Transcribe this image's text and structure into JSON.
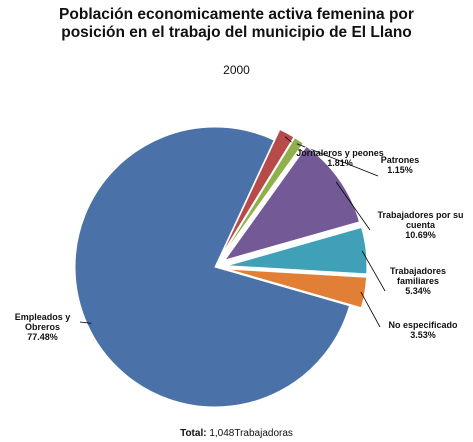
{
  "chart_data": {
    "type": "pie",
    "title": "Población economicamente activa femenina por posición en el trabajo del municipio de El Llano",
    "subtitle": "2000",
    "categories": [
      "Jornaleros y peones",
      "Patrones",
      "Trabajadores por su cuenta",
      "Trabajadores familiares",
      "No especificado",
      "Empleados y Obreros"
    ],
    "values": [
      1.81,
      1.15,
      10.69,
      5.34,
      3.53,
      77.48
    ],
    "value_labels": [
      "1.81%",
      "1.15%",
      "10.69%",
      "5.34%",
      "3.53%",
      "77.48%"
    ],
    "colors": [
      "#b84a4a",
      "#8fb04a",
      "#735a96",
      "#3fa0b8",
      "#e07f35",
      "#4a72a8"
    ],
    "total_label": "Total:",
    "total_value": "1,048Trabajadoras"
  }
}
